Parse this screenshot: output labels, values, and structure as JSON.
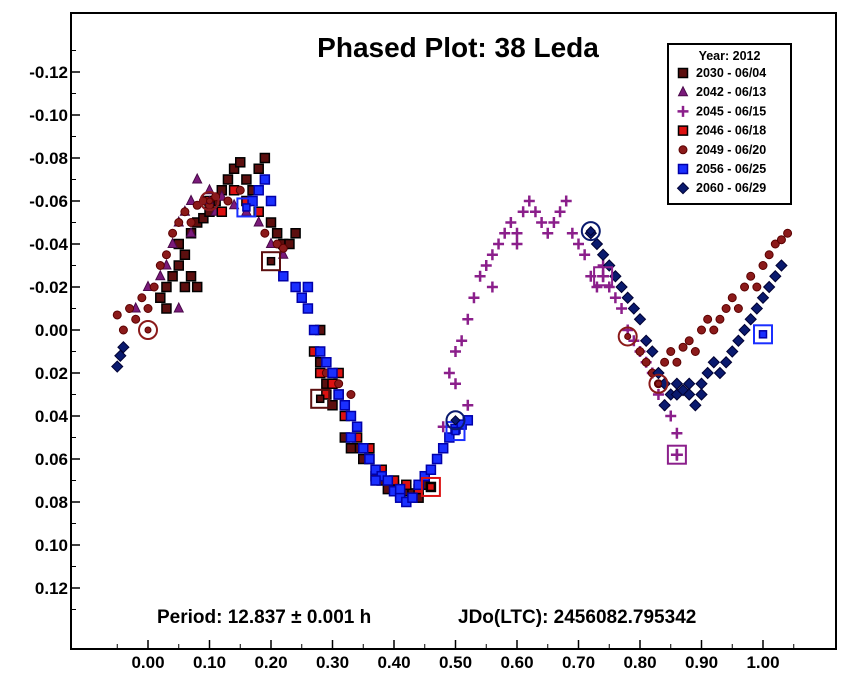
{
  "chart_data": {
    "type": "scatter",
    "title": "Phased Plot: 38 Leda",
    "xlabel": "",
    "ylabel": "",
    "xlim": [
      -0.08,
      1.08
    ],
    "ylim": [
      0.14,
      -0.14
    ],
    "y_axis_inverted": true,
    "x_ticks": [
      "0.00",
      "0.10",
      "0.20",
      "0.30",
      "0.40",
      "0.50",
      "0.60",
      "0.70",
      "0.80",
      "0.90",
      "1.00"
    ],
    "x_tick_values": [
      0,
      0.1,
      0.2,
      0.3,
      0.4,
      0.5,
      0.6,
      0.7,
      0.8,
      0.9,
      1.0
    ],
    "y_ticks": [
      "-0.12",
      "-0.10",
      "-0.08",
      "-0.06",
      "-0.04",
      "-0.02",
      "0.00",
      "0.02",
      "0.04",
      "0.06",
      "0.08",
      "0.10",
      "0.12"
    ],
    "y_tick_values": [
      -0.12,
      -0.1,
      -0.08,
      -0.06,
      -0.04,
      -0.02,
      0,
      0.02,
      0.04,
      0.06,
      0.08,
      0.1,
      0.12
    ],
    "grid": false,
    "legend_title": "Year: 2012",
    "legend_position": "top-right",
    "annotations": {
      "period": "Period: 12.837 ± 0.001 h",
      "epoch": "JDo(LTC): 2456082.795342"
    },
    "series": [
      {
        "name": "2030 - 06/04",
        "marker": "square",
        "fill": "#5c0f0f",
        "stroke": "#000000",
        "points": [
          [
            0.02,
            -0.015
          ],
          [
            0.03,
            -0.02
          ],
          [
            0.04,
            -0.025
          ],
          [
            0.05,
            -0.03
          ],
          [
            0.06,
            -0.035
          ],
          [
            0.07,
            -0.045
          ],
          [
            0.08,
            -0.05
          ],
          [
            0.09,
            -0.052
          ],
          [
            0.1,
            -0.055
          ],
          [
            0.11,
            -0.06
          ],
          [
            0.12,
            -0.065
          ],
          [
            0.13,
            -0.07
          ],
          [
            0.14,
            -0.075
          ],
          [
            0.15,
            -0.078
          ],
          [
            0.16,
            -0.07
          ],
          [
            0.17,
            -0.065
          ],
          [
            0.18,
            -0.075
          ],
          [
            0.19,
            -0.08
          ],
          [
            0.2,
            -0.05
          ],
          [
            0.21,
            -0.045
          ],
          [
            0.22,
            -0.04
          ],
          [
            0.23,
            -0.04
          ],
          [
            0.24,
            -0.045
          ],
          [
            0.06,
            -0.02
          ],
          [
            0.07,
            -0.025
          ],
          [
            0.08,
            -0.02
          ],
          [
            0.03,
            -0.01
          ],
          [
            0.05,
            -0.04
          ],
          [
            0.28,
            0.0
          ],
          [
            0.3,
            0.035
          ],
          [
            0.32,
            0.05
          ],
          [
            0.34,
            0.055
          ],
          [
            0.36,
            0.06
          ],
          [
            0.38,
            0.07
          ],
          [
            0.4,
            0.072
          ],
          [
            0.42,
            0.075
          ],
          [
            0.43,
            0.076
          ],
          [
            0.44,
            0.078
          ],
          [
            0.45,
            0.072
          ],
          [
            0.28,
            0.015
          ],
          [
            0.29,
            0.025
          ],
          [
            0.31,
            0.03
          ],
          [
            0.33,
            0.055
          ],
          [
            0.35,
            0.06
          ],
          [
            0.37,
            0.068
          ],
          [
            0.39,
            0.074
          ],
          [
            0.41,
            0.077
          ]
        ]
      },
      {
        "name": "2042 - 06/13",
        "marker": "triangle",
        "fill": "#7a1a7a",
        "stroke": "#4a0a4a",
        "points": [
          [
            -0.02,
            -0.01
          ],
          [
            0.0,
            -0.02
          ],
          [
            0.02,
            -0.025
          ],
          [
            0.03,
            -0.03
          ],
          [
            0.04,
            -0.04
          ],
          [
            0.05,
            -0.05
          ],
          [
            0.06,
            -0.055
          ],
          [
            0.07,
            -0.06
          ],
          [
            0.08,
            -0.07
          ],
          [
            0.09,
            -0.06
          ],
          [
            0.1,
            -0.065
          ],
          [
            0.12,
            -0.062
          ],
          [
            0.14,
            -0.058
          ],
          [
            0.16,
            -0.055
          ],
          [
            0.18,
            -0.05
          ],
          [
            0.2,
            -0.04
          ],
          [
            0.22,
            -0.035
          ],
          [
            0.05,
            -0.01
          ],
          [
            0.07,
            -0.045
          ],
          [
            0.11,
            -0.055
          ]
        ]
      },
      {
        "name": "2045 - 06/15",
        "marker": "plus",
        "fill": "#8b1f8b",
        "stroke": "#8b1f8b",
        "points": [
          [
            0.48,
            0.045
          ],
          [
            0.49,
            0.02
          ],
          [
            0.5,
            0.01
          ],
          [
            0.51,
            0.005
          ],
          [
            0.52,
            -0.005
          ],
          [
            0.53,
            -0.015
          ],
          [
            0.54,
            -0.025
          ],
          [
            0.55,
            -0.03
          ],
          [
            0.56,
            -0.035
          ],
          [
            0.57,
            -0.04
          ],
          [
            0.58,
            -0.045
          ],
          [
            0.59,
            -0.05
          ],
          [
            0.6,
            -0.045
          ],
          [
            0.61,
            -0.055
          ],
          [
            0.62,
            -0.06
          ],
          [
            0.63,
            -0.055
          ],
          [
            0.64,
            -0.05
          ],
          [
            0.65,
            -0.045
          ],
          [
            0.66,
            -0.05
          ],
          [
            0.67,
            -0.055
          ],
          [
            0.68,
            -0.06
          ],
          [
            0.69,
            -0.045
          ],
          [
            0.7,
            -0.04
          ],
          [
            0.71,
            -0.035
          ],
          [
            0.72,
            -0.025
          ],
          [
            0.73,
            -0.02
          ],
          [
            0.74,
            -0.025
          ],
          [
            0.75,
            -0.02
          ],
          [
            0.76,
            -0.015
          ],
          [
            0.77,
            -0.01
          ],
          [
            0.78,
            0.0
          ],
          [
            0.79,
            0.005
          ],
          [
            0.8,
            0.01
          ],
          [
            0.81,
            0.015
          ],
          [
            0.82,
            0.02
          ],
          [
            0.83,
            0.03
          ],
          [
            0.84,
            0.035
          ],
          [
            0.85,
            0.04
          ],
          [
            0.86,
            0.048
          ],
          [
            0.86,
            0.058
          ],
          [
            0.52,
            0.035
          ],
          [
            0.5,
            0.025
          ],
          [
            0.56,
            -0.02
          ],
          [
            0.6,
            -0.04
          ],
          [
            0.74,
            -0.03
          ]
        ]
      },
      {
        "name": "2046 - 06/18",
        "marker": "square",
        "fill": "#dd1111",
        "stroke": "#000000",
        "points": [
          [
            0.1,
            -0.06
          ],
          [
            0.12,
            -0.055
          ],
          [
            0.14,
            -0.065
          ],
          [
            0.16,
            -0.06
          ],
          [
            0.18,
            -0.055
          ],
          [
            0.29,
            0.03
          ],
          [
            0.3,
            0.025
          ],
          [
            0.31,
            0.02
          ],
          [
            0.32,
            0.04
          ],
          [
            0.34,
            0.05
          ],
          [
            0.36,
            0.055
          ],
          [
            0.38,
            0.065
          ],
          [
            0.4,
            0.07
          ],
          [
            0.42,
            0.072
          ],
          [
            0.44,
            0.074
          ],
          [
            0.46,
            0.073
          ],
          [
            0.27,
            0.01
          ],
          [
            0.28,
            0.02
          ]
        ]
      },
      {
        "name": "2049 - 06/20",
        "marker": "circle",
        "fill": "#8b1a1a",
        "stroke": "#5a0000",
        "points": [
          [
            -0.05,
            -0.007
          ],
          [
            -0.04,
            0.0
          ],
          [
            -0.03,
            -0.01
          ],
          [
            -0.02,
            -0.005
          ],
          [
            -0.01,
            -0.015
          ],
          [
            0.0,
            -0.01
          ],
          [
            0.01,
            -0.02
          ],
          [
            0.02,
            -0.03
          ],
          [
            0.03,
            -0.035
          ],
          [
            0.04,
            -0.045
          ],
          [
            0.05,
            -0.05
          ],
          [
            0.06,
            -0.055
          ],
          [
            0.07,
            -0.05
          ],
          [
            0.08,
            -0.058
          ],
          [
            0.09,
            -0.06
          ],
          [
            0.1,
            -0.058
          ],
          [
            0.11,
            -0.062
          ],
          [
            0.13,
            -0.06
          ],
          [
            0.15,
            -0.065
          ],
          [
            0.17,
            -0.06
          ],
          [
            0.19,
            -0.045
          ],
          [
            0.21,
            -0.04
          ],
          [
            0.22,
            -0.038
          ],
          [
            0.27,
            0.0
          ],
          [
            0.29,
            0.02
          ],
          [
            0.31,
            0.025
          ],
          [
            0.33,
            0.03
          ],
          [
            0.82,
            0.02
          ],
          [
            0.83,
            0.025
          ],
          [
            0.84,
            0.015
          ],
          [
            0.85,
            0.01
          ],
          [
            0.86,
            0.015
          ],
          [
            0.87,
            0.008
          ],
          [
            0.88,
            0.005
          ],
          [
            0.89,
            0.01
          ],
          [
            0.9,
            0.0
          ],
          [
            0.91,
            -0.005
          ],
          [
            0.92,
            0.0
          ],
          [
            0.93,
            -0.005
          ],
          [
            0.94,
            -0.01
          ],
          [
            0.95,
            -0.015
          ],
          [
            0.96,
            -0.01
          ],
          [
            0.97,
            -0.02
          ],
          [
            0.98,
            -0.025
          ],
          [
            0.99,
            -0.02
          ],
          [
            1.0,
            -0.03
          ],
          [
            1.01,
            -0.035
          ],
          [
            1.02,
            -0.04
          ],
          [
            1.03,
            -0.042
          ],
          [
            1.04,
            -0.045
          ],
          [
            0.8,
            0.01
          ],
          [
            0.81,
            0.015
          ]
        ]
      },
      {
        "name": "2056 - 06/25",
        "marker": "square",
        "fill": "#1a2fff",
        "stroke": "#0000aa",
        "points": [
          [
            0.17,
            -0.06
          ],
          [
            0.18,
            -0.065
          ],
          [
            0.19,
            -0.07
          ],
          [
            0.2,
            -0.06
          ],
          [
            0.22,
            -0.025
          ],
          [
            0.24,
            -0.02
          ],
          [
            0.25,
            -0.015
          ],
          [
            0.26,
            -0.01
          ],
          [
            0.27,
            0.0
          ],
          [
            0.28,
            0.01
          ],
          [
            0.29,
            0.015
          ],
          [
            0.3,
            0.02
          ],
          [
            0.31,
            0.03
          ],
          [
            0.32,
            0.035
          ],
          [
            0.33,
            0.04
          ],
          [
            0.34,
            0.045
          ],
          [
            0.35,
            0.055
          ],
          [
            0.36,
            0.06
          ],
          [
            0.37,
            0.065
          ],
          [
            0.38,
            0.068
          ],
          [
            0.39,
            0.07
          ],
          [
            0.4,
            0.075
          ],
          [
            0.41,
            0.078
          ],
          [
            0.42,
            0.08
          ],
          [
            0.43,
            0.078
          ],
          [
            0.44,
            0.072
          ],
          [
            0.45,
            0.068
          ],
          [
            0.46,
            0.065
          ],
          [
            0.47,
            0.06
          ],
          [
            0.48,
            0.055
          ],
          [
            0.49,
            0.05
          ],
          [
            0.5,
            0.046
          ],
          [
            0.51,
            0.044
          ],
          [
            0.52,
            0.042
          ],
          [
            0.26,
            -0.02
          ],
          [
            0.33,
            0.05
          ],
          [
            0.37,
            0.07
          ],
          [
            0.41,
            0.074
          ]
        ]
      },
      {
        "name": "2060 - 06/29",
        "marker": "diamond",
        "fill": "#0a1a6e",
        "stroke": "#000033",
        "points": [
          [
            -0.05,
            0.017
          ],
          [
            -0.045,
            0.012
          ],
          [
            -0.04,
            0.008
          ],
          [
            0.72,
            -0.045
          ],
          [
            0.73,
            -0.04
          ],
          [
            0.74,
            -0.035
          ],
          [
            0.75,
            -0.03
          ],
          [
            0.76,
            -0.025
          ],
          [
            0.77,
            -0.02
          ],
          [
            0.78,
            -0.015
          ],
          [
            0.79,
            -0.01
          ],
          [
            0.8,
            -0.005
          ],
          [
            0.81,
            0.005
          ],
          [
            0.82,
            0.01
          ],
          [
            0.83,
            0.02
          ],
          [
            0.84,
            0.025
          ],
          [
            0.85,
            0.03
          ],
          [
            0.86,
            0.03
          ],
          [
            0.87,
            0.028
          ],
          [
            0.88,
            0.03
          ],
          [
            0.89,
            0.035
          ],
          [
            0.9,
            0.025
          ],
          [
            0.91,
            0.02
          ],
          [
            0.92,
            0.015
          ],
          [
            0.93,
            0.02
          ],
          [
            0.94,
            0.015
          ],
          [
            0.95,
            0.01
          ],
          [
            0.96,
            0.005
          ],
          [
            0.97,
            0.0
          ],
          [
            0.98,
            -0.005
          ],
          [
            0.99,
            -0.01
          ],
          [
            1.0,
            -0.015
          ],
          [
            1.01,
            -0.02
          ],
          [
            1.02,
            -0.025
          ],
          [
            1.03,
            -0.03
          ],
          [
            0.84,
            0.035
          ],
          [
            0.86,
            0.025
          ],
          [
            0.88,
            0.025
          ],
          [
            0.9,
            0.03
          ]
        ]
      }
    ],
    "highlighted_points": [
      {
        "series": 0,
        "x": 0.2,
        "y": -0.032
      },
      {
        "series": 0,
        "x": 0.28,
        "y": 0.032
      },
      {
        "series": 1,
        "x": 0.1,
        "y": -0.06
      },
      {
        "series": 2,
        "x": 0.86,
        "y": 0.058
      },
      {
        "series": 2,
        "x": 0.74,
        "y": -0.025
      },
      {
        "series": 3,
        "x": 0.46,
        "y": 0.073
      },
      {
        "series": 4,
        "x": 0.0,
        "y": 0.0
      },
      {
        "series": 4,
        "x": 0.1,
        "y": -0.06
      },
      {
        "series": 4,
        "x": 0.78,
        "y": 0.003
      },
      {
        "series": 4,
        "x": 0.83,
        "y": 0.025
      },
      {
        "series": 5,
        "x": 0.16,
        "y": -0.057
      },
      {
        "series": 5,
        "x": 0.5,
        "y": 0.047
      },
      {
        "series": 5,
        "x": 1.0,
        "y": 0.002
      },
      {
        "series": 6,
        "x": 0.72,
        "y": -0.046
      },
      {
        "series": 6,
        "x": 0.5,
        "y": 0.042
      }
    ]
  }
}
